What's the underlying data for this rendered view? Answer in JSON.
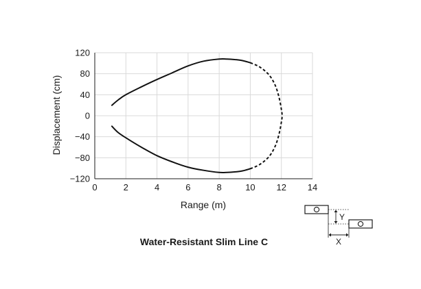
{
  "chart_data": {
    "type": "line",
    "title": "Water-Resistant Slim Line C",
    "xlabel": "Range (m)",
    "ylabel": "Displacement (cm)",
    "xlim": [
      0,
      14
    ],
    "ylim": [
      -120,
      120
    ],
    "xticks": [
      0,
      2,
      4,
      6,
      8,
      10,
      12,
      14
    ],
    "yticks": [
      120,
      80,
      40,
      0,
      -40,
      -80,
      -120
    ],
    "ytick_labels": [
      "120",
      "80",
      "40",
      "0",
      "−40",
      "−80",
      "−120"
    ],
    "grid": true,
    "series": [
      {
        "style": "solid",
        "x": [
          1.1,
          1.5,
          2,
          3,
          4,
          5,
          6,
          7,
          8,
          8.5,
          9,
          9.5,
          10
        ],
        "y": [
          20,
          30,
          40,
          55,
          69,
          82,
          95,
          104,
          108,
          108,
          107,
          105,
          101
        ]
      },
      {
        "style": "dashed",
        "x": [
          10,
          10.6,
          11.2,
          11.6,
          11.85,
          12.0,
          12.05,
          12.0,
          11.85,
          11.6,
          11.2,
          10.6,
          10
        ],
        "y": [
          101,
          93,
          78,
          58,
          35,
          12,
          0,
          -12,
          -35,
          -58,
          -78,
          -93,
          -101
        ]
      },
      {
        "style": "solid",
        "x": [
          10,
          9.5,
          9,
          8.5,
          8,
          7,
          6,
          5,
          4,
          3,
          2,
          1.5,
          1.1
        ],
        "y": [
          -101,
          -105,
          -107,
          -108,
          -108,
          -104,
          -98,
          -88,
          -76,
          -60,
          -42,
          -32,
          -20
        ]
      }
    ],
    "inset": {
      "labels": [
        "Y",
        "X"
      ]
    }
  }
}
